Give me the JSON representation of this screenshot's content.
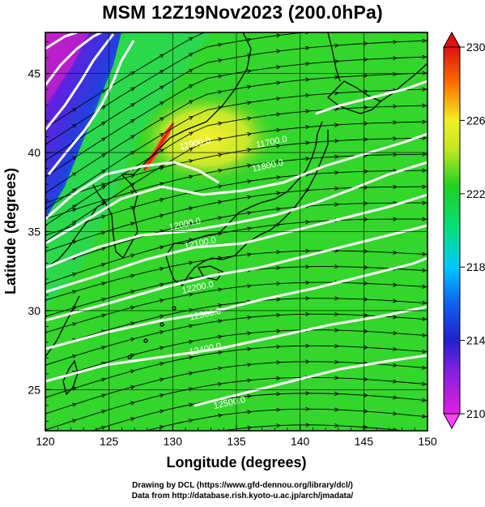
{
  "title": "MSM 12Z19Nov2023 (200.0hPa)",
  "credits": {
    "line1": "Drawing by DCL (https://www.gfd-dennou.org/library/dcl/)",
    "line2": "Data from http://database.rish.kyoto-u.ac.jp/arch/jmadata/"
  },
  "chart_data": {
    "type": "map",
    "xlabel": "Longitude (degrees)",
    "ylabel": "Latitude  (degrees)",
    "xlim": [
      120,
      150
    ],
    "ylim": [
      22.4,
      47.6
    ],
    "xticks": [
      120,
      125,
      130,
      135,
      140,
      145,
      150
    ],
    "yticks": [
      25,
      30,
      35,
      40,
      45
    ],
    "grid": true,
    "colorbar": {
      "min": 210,
      "max": 230,
      "ticks": [
        210,
        214,
        218,
        222,
        226,
        230
      ],
      "colors": [
        "#e020e0",
        "#2020d0",
        "#00c8ff",
        "#00e080",
        "#20d020",
        "#f0f020",
        "#ff7000",
        "#e01010"
      ]
    },
    "contour_labels": [
      {
        "text": "11700.0",
        "lon": 137.8,
        "lat": 40.5
      },
      {
        "text": "11800.0",
        "lon": 137.5,
        "lat": 39.0
      },
      {
        "text": "11900.0",
        "lon": 131.8,
        "lat": 40.4
      },
      {
        "text": "12000.0",
        "lon": 131.0,
        "lat": 35.3
      },
      {
        "text": "12100.0",
        "lon": 132.2,
        "lat": 34.1
      },
      {
        "text": "12200.0",
        "lon": 132.0,
        "lat": 31.3
      },
      {
        "text": "12300.0",
        "lon": 132.6,
        "lat": 29.6
      },
      {
        "text": "12400.0",
        "lon": 132.6,
        "lat": 27.4
      },
      {
        "text": "12500.0",
        "lon": 134.5,
        "lat": 24.0
      }
    ]
  }
}
